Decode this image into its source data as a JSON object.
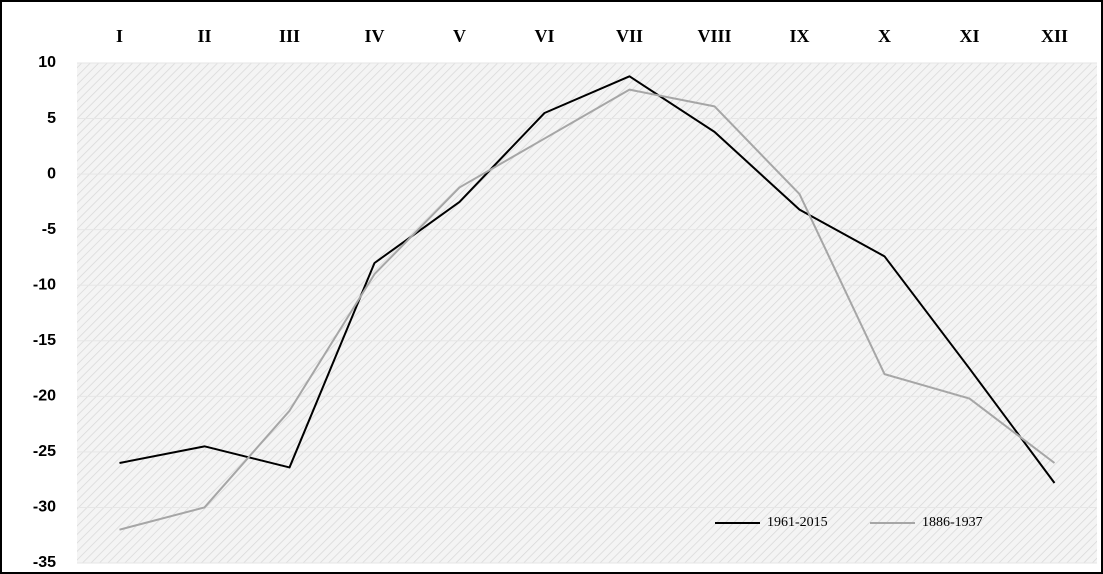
{
  "chart_data": {
    "type": "line",
    "categories": [
      "I",
      "II",
      "III",
      "IV",
      "V",
      "VI",
      "VII",
      "VIII",
      "IX",
      "X",
      "XI",
      "XII"
    ],
    "series": [
      {
        "name": "1961-2015",
        "color": "#000000",
        "values": [
          -26,
          -24.5,
          -26.4,
          -8,
          -2.5,
          5.5,
          8.8,
          3.8,
          -3.2,
          -7.4,
          -17.5,
          -27.8
        ]
      },
      {
        "name": "1886-1937",
        "color": "#a6a6a6",
        "values": [
          -32,
          -30,
          -21.3,
          -9,
          -1.2,
          3.2,
          7.6,
          6.1,
          -1.8,
          -18,
          -20.2,
          -26
        ]
      }
    ],
    "ylim": [
      -35,
      10
    ],
    "yticks": [
      10,
      5,
      0,
      -5,
      -10,
      -15,
      -20,
      -25,
      -30,
      -35
    ],
    "grid": true,
    "legend": "bottom-right"
  }
}
